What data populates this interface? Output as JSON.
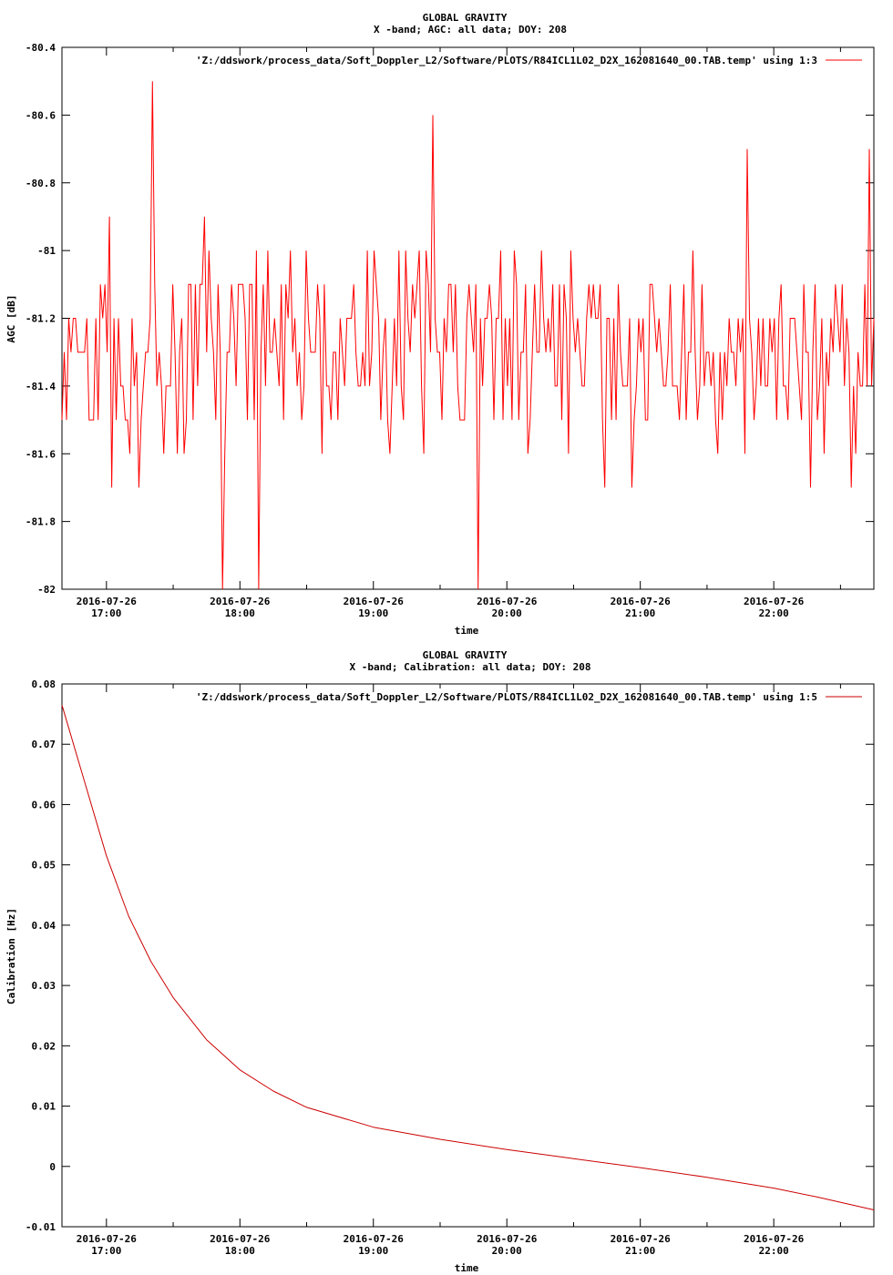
{
  "chart_data": [
    {
      "type": "line",
      "title": "GLOBAL GRAVITY",
      "subtitle": "X -band; AGC: all data; DOY: 208",
      "xlabel": "time",
      "ylabel": "AGC [dB]",
      "legend": "'Z:/ddswork/process_data/Soft_Doppler_L2/Software/PLOTS/R84ICL1L02_D2X_162081640_00.TAB.temp' using 1:3",
      "legend_position": "top-right",
      "color": "#ff0000",
      "xlim": [
        "2016-07-26 16:40",
        "2016-07-26 22:45"
      ],
      "ylim": [
        -82,
        -80.4
      ],
      "yticks": [
        -80.4,
        -80.6,
        -80.8,
        -81,
        -81.2,
        -81.4,
        -81.6,
        -81.8,
        -82
      ],
      "ytick_labels": [
        "-80.4",
        "-80.6",
        "-80.8",
        "-81",
        "-81.2",
        "-81.4",
        "-81.6",
        "-81.8",
        "-82"
      ],
      "xticks": [
        "2016-07-26 17:00",
        "2016-07-26 18:00",
        "2016-07-26 19:00",
        "2016-07-26 20:00",
        "2016-07-26 21:00",
        "2016-07-26 22:00"
      ],
      "xtick_labels": [
        [
          "2016-07-26",
          "17:00"
        ],
        [
          "2016-07-26",
          "18:00"
        ],
        [
          "2016-07-26",
          "19:00"
        ],
        [
          "2016-07-26",
          "20:00"
        ],
        [
          "2016-07-26",
          "21:00"
        ],
        [
          "2016-07-26",
          "22:00"
        ]
      ],
      "noise": {
        "center": -81.3,
        "spread": 0.3,
        "min": -82,
        "max": -80.5,
        "samples": 360
      },
      "spikes": [
        {
          "x": "2016-07-26 17:21",
          "y": -80.5
        },
        {
          "x": "2016-07-26 19:27",
          "y": -80.6
        },
        {
          "x": "2016-07-26 17:52",
          "y": -82
        },
        {
          "x": "2016-07-26 18:08",
          "y": -82
        },
        {
          "x": "2016-07-26 19:47",
          "y": -82
        },
        {
          "x": "2016-07-26 21:48",
          "y": -80.7
        },
        {
          "x": "2016-07-26 22:43",
          "y": -80.7
        }
      ]
    },
    {
      "type": "line",
      "title": "GLOBAL GRAVITY",
      "subtitle": "X -band; Calibration: all data; DOY: 208",
      "xlabel": "time",
      "ylabel": "Calibration [Hz]",
      "legend": "'Z:/ddswork/process_data/Soft_Doppler_L2/Software/PLOTS/R84ICL1L02_D2X_162081640_00.TAB.temp' using 1:5",
      "legend_position": "top-right",
      "color": "#cc0000",
      "xlim": [
        "2016-07-26 16:40",
        "2016-07-26 22:45"
      ],
      "ylim": [
        -0.01,
        0.08
      ],
      "yticks": [
        0.08,
        0.07,
        0.06,
        0.05,
        0.04,
        0.03,
        0.02,
        0.01,
        0,
        -0.01
      ],
      "ytick_labels": [
        "0.08",
        "0.07",
        "0.06",
        "0.05",
        "0.04",
        "0.03",
        "0.02",
        "0.01",
        "0",
        "-0.01"
      ],
      "xticks": [
        "2016-07-26 17:00",
        "2016-07-26 18:00",
        "2016-07-26 19:00",
        "2016-07-26 20:00",
        "2016-07-26 21:00",
        "2016-07-26 22:00"
      ],
      "xtick_labels": [
        [
          "2016-07-26",
          "17:00"
        ],
        [
          "2016-07-26",
          "18:00"
        ],
        [
          "2016-07-26",
          "19:00"
        ],
        [
          "2016-07-26",
          "20:00"
        ],
        [
          "2016-07-26",
          "21:00"
        ],
        [
          "2016-07-26",
          "22:00"
        ]
      ],
      "series": [
        {
          "x": [
            "2016-07-26 16:40",
            "2016-07-26 16:50",
            "2016-07-26 17:00",
            "2016-07-26 17:10",
            "2016-07-26 17:20",
            "2016-07-26 17:30",
            "2016-07-26 17:45",
            "2016-07-26 18:00",
            "2016-07-26 18:15",
            "2016-07-26 18:30",
            "2016-07-26 19:00",
            "2016-07-26 19:30",
            "2016-07-26 20:00",
            "2016-07-26 20:30",
            "2016-07-26 21:00",
            "2016-07-26 21:30",
            "2016-07-26 22:00",
            "2016-07-26 22:20",
            "2016-07-26 22:45"
          ],
          "values": [
            0.0765,
            0.064,
            0.0515,
            0.0415,
            0.034,
            0.028,
            0.021,
            0.016,
            0.0125,
            0.0098,
            0.0065,
            0.0045,
            0.0028,
            0.0013,
            -0.0002,
            -0.0018,
            -0.0036,
            -0.0051,
            -0.0072
          ]
        }
      ]
    }
  ]
}
